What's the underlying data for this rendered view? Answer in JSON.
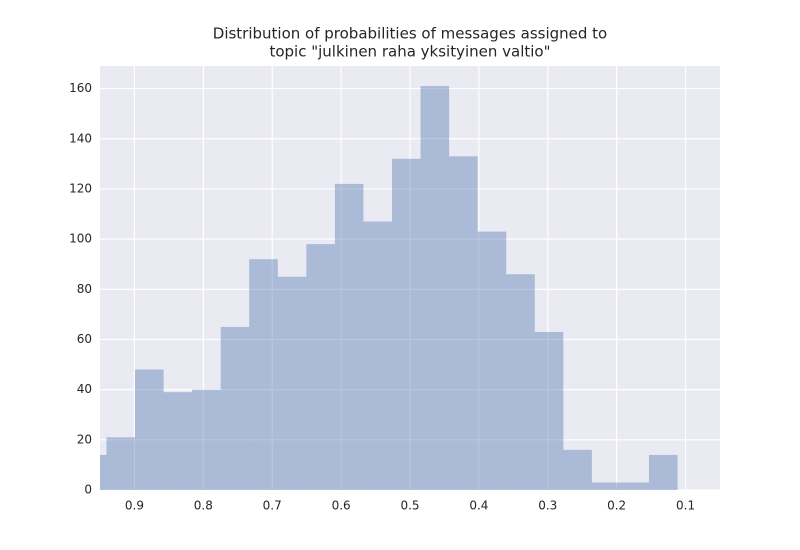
{
  "chart_data": {
    "type": "histogram",
    "title": [
      "Distribution of probabilities of messages assigned to",
      "topic \"julkinen raha yksityinen valtio\""
    ],
    "bins": [
      0.1116,
      0.1531,
      0.1945,
      0.236,
      0.2774,
      0.3189,
      0.3603,
      0.4018,
      0.4432,
      0.4847,
      0.5261,
      0.5676,
      0.609,
      0.6505,
      0.6919,
      0.7334,
      0.7748,
      0.8163,
      0.8577,
      0.8992,
      0.9406,
      0.9821
    ],
    "values": [
      14,
      3,
      3,
      16,
      63,
      86,
      103,
      133,
      161,
      132,
      107,
      122,
      98,
      85,
      92,
      65,
      40,
      39,
      48,
      21,
      14
    ],
    "color": "#4c72b0",
    "xlim": [
      0.95,
      0.05
    ],
    "xticks": [
      0.9,
      0.8,
      0.7,
      0.6,
      0.5,
      0.4,
      0.3,
      0.2,
      0.1
    ],
    "ylim": [
      0,
      169
    ],
    "yticks": [
      0,
      20,
      40,
      60,
      80,
      100,
      120,
      140,
      160
    ],
    "grid": true
  }
}
